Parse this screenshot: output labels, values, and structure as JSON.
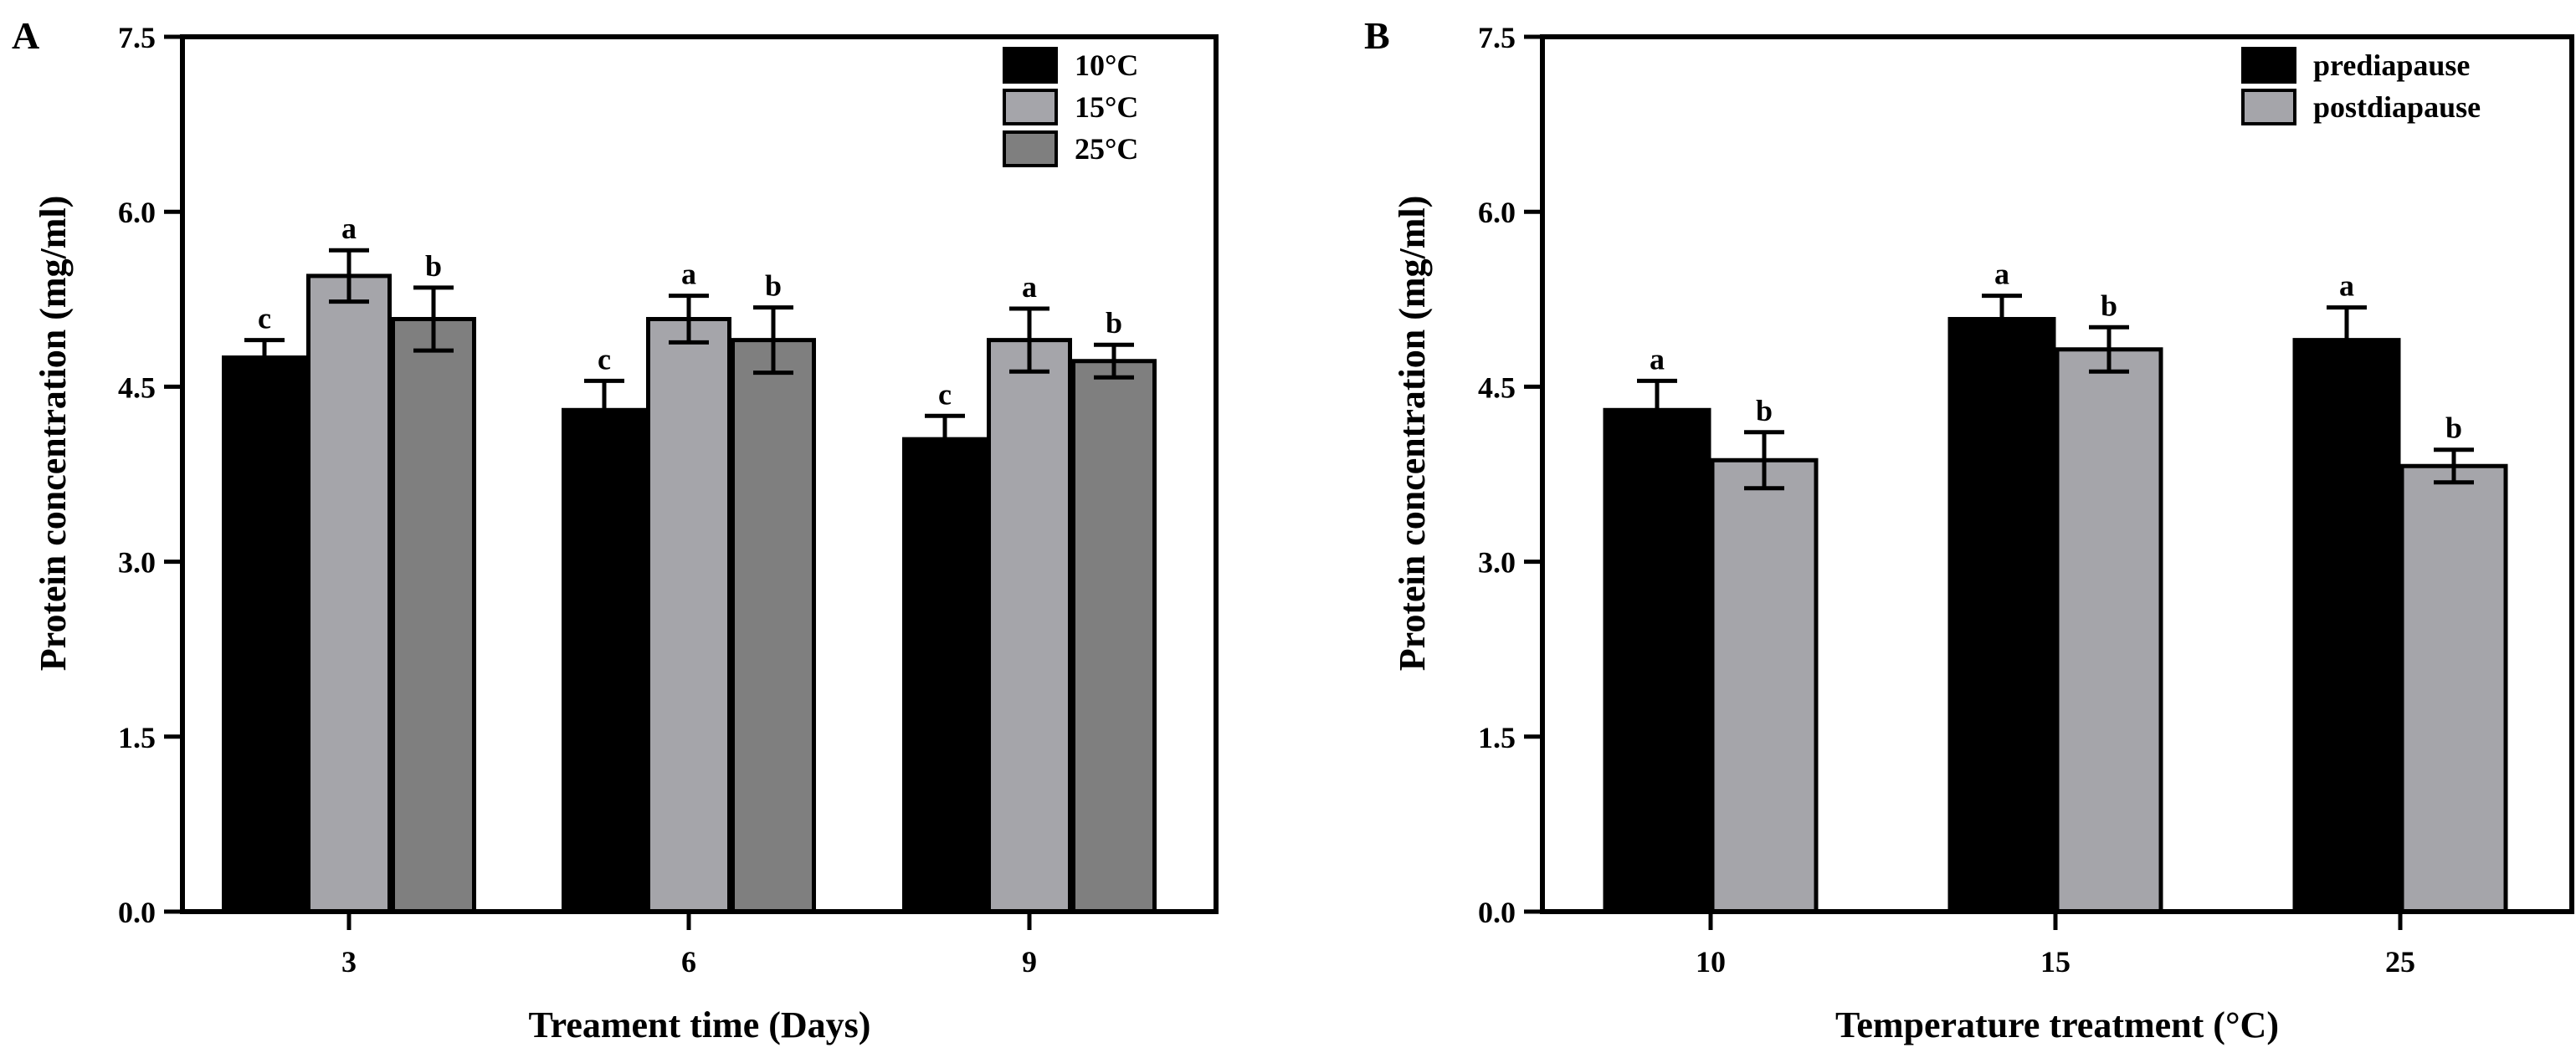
{
  "colors": {
    "axis": "#000000",
    "black_bar": "#000000",
    "light_gray_bar": "#a5a5aa",
    "dark_gray_bar": "#7f7f7f",
    "outline": "#000000",
    "background": "#ffffff"
  },
  "chart_data": [
    {
      "panel_label": "A",
      "type": "bar",
      "title": "",
      "xlabel": "Treament time (Days)",
      "ylabel": "Protein concentration (mg/ml)",
      "ylim": [
        0,
        7.5
      ],
      "yticks": [
        "0.0",
        "1.5",
        "3.0",
        "4.5",
        "6.0",
        "7.5"
      ],
      "categories": [
        "3",
        "6",
        "9"
      ],
      "legend_position": "top-right",
      "grid": false,
      "series": [
        {
          "name": "10°C",
          "color": "#000000",
          "values": [
            4.75,
            4.3,
            4.05
          ],
          "errors": [
            0.15,
            0.25,
            0.2
          ],
          "letters": [
            "c",
            "c",
            "c"
          ]
        },
        {
          "name": "15°C",
          "color": "#a5a5aa",
          "values": [
            5.45,
            5.08,
            4.9
          ],
          "errors": [
            0.22,
            0.2,
            0.27
          ],
          "letters": [
            "a",
            "a",
            "a"
          ]
        },
        {
          "name": "25°C",
          "color": "#7f7f7f",
          "values": [
            5.08,
            4.9,
            4.72
          ],
          "errors": [
            0.27,
            0.28,
            0.14
          ],
          "letters": [
            "b",
            "b",
            "b"
          ]
        }
      ]
    },
    {
      "panel_label": "B",
      "type": "bar",
      "title": "",
      "xlabel": "Temperature treatment (°C)",
      "ylabel": "Protein concentration (mg/ml)",
      "ylim": [
        0,
        7.5
      ],
      "yticks": [
        "0.0",
        "1.5",
        "3.0",
        "4.5",
        "6.0",
        "7.5"
      ],
      "categories": [
        "10",
        "15",
        "25"
      ],
      "legend_position": "top-right",
      "grid": false,
      "series": [
        {
          "name": "prediapause",
          "color": "#000000",
          "values": [
            4.3,
            5.08,
            4.9
          ],
          "errors": [
            0.25,
            0.2,
            0.28
          ],
          "letters": [
            "a",
            "a",
            "a"
          ]
        },
        {
          "name": "postdiapause",
          "color": "#a5a5aa",
          "values": [
            3.87,
            4.82,
            3.82
          ],
          "errors": [
            0.24,
            0.19,
            0.14
          ],
          "letters": [
            "b",
            "b",
            "b"
          ]
        }
      ]
    }
  ]
}
